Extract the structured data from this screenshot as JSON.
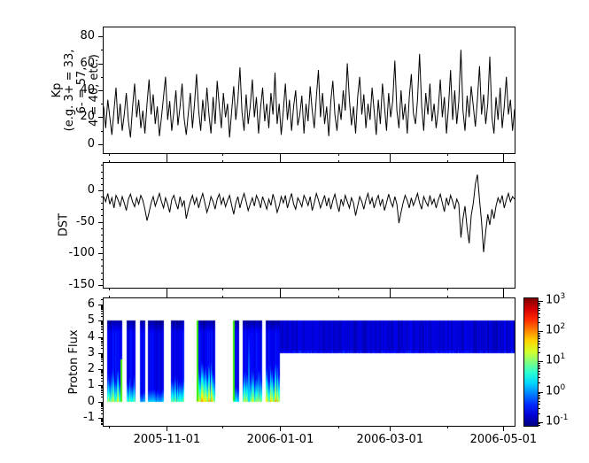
{
  "figure": {
    "background": "#ffffff",
    "line_color": "#000000"
  },
  "labels": {
    "kp_lines": [
      "Kp",
      "(e.g. 3+ = 33,",
      "6- = 57,",
      "4 = 40, etc.)"
    ],
    "dst": "DST",
    "proton": "Proton Flux"
  },
  "xaxis": {
    "domain_days": 221,
    "ticks": [
      {
        "day": 34,
        "label": "2005-11-01"
      },
      {
        "day": 95,
        "label": "2006-01-01"
      },
      {
        "day": 154,
        "label": "2006-03-01"
      },
      {
        "day": 215,
        "label": "2006-05-01"
      }
    ],
    "minor_days": [
      3,
      64,
      126,
      185
    ]
  },
  "colorbar": {
    "base": "10",
    "tick_exponents": [
      3,
      2,
      1,
      0,
      -1
    ],
    "range_exponents": [
      -1.12,
      3.09
    ],
    "scale": "log",
    "colormap": "jet"
  },
  "chart_data": [
    {
      "type": "line",
      "name": "kp",
      "ylabel": "Kp (e.g. 3+ = 33, 6- = 57, 4 = 40, etc.)",
      "ylim": [
        -6.6,
        86.6
      ],
      "yticks": [
        0,
        20,
        40,
        60,
        80
      ],
      "yticks_minor": [
        10,
        30,
        50,
        70
      ],
      "x_domain_days": [
        0,
        221
      ],
      "values": [
        28,
        12,
        33,
        20,
        7,
        25,
        42,
        15,
        30,
        10,
        22,
        38,
        17,
        5,
        27,
        45,
        20,
        33,
        12,
        25,
        8,
        30,
        48,
        22,
        37,
        15,
        28,
        6,
        20,
        35,
        50,
        18,
        32,
        10,
        24,
        40,
        14,
        28,
        45,
        19,
        7,
        23,
        38,
        12,
        30,
        52,
        25,
        10,
        33,
        17,
        42,
        22,
        8,
        35,
        15,
        47,
        28,
        12,
        38,
        20,
        30,
        5,
        25,
        43,
        18,
        33,
        57,
        24,
        10,
        37,
        15,
        28,
        48,
        20,
        35,
        8,
        27,
        42,
        17,
        30,
        12,
        38,
        22,
        53,
        15,
        30,
        7,
        25,
        45,
        18,
        33,
        10,
        28,
        40,
        14,
        22,
        36,
        8,
        30,
        17,
        43,
        25,
        12,
        35,
        55,
        20,
        38,
        15,
        28,
        6,
        32,
        47,
        22,
        10,
        30,
        18,
        40,
        25,
        60,
        33,
        14,
        28,
        8,
        35,
        50,
        22,
        37,
        12,
        30,
        18,
        42,
        25,
        7,
        33,
        15,
        45,
        28,
        10,
        38,
        20,
        32,
        62,
        25,
        12,
        40,
        18,
        30,
        8,
        35,
        52,
        23,
        15,
        33,
        67,
        28,
        10,
        38,
        22,
        45,
        17,
        30,
        12,
        25,
        48,
        20,
        35,
        8,
        28,
        55,
        18,
        40,
        15,
        32,
        70,
        25,
        10,
        36,
        20,
        43,
        28,
        13,
        33,
        58,
        22,
        37,
        15,
        30,
        65,
        20,
        8,
        35,
        18,
        42,
        12,
        28,
        50,
        22,
        33,
        10,
        26
      ]
    },
    {
      "type": "line",
      "name": "dst",
      "ylabel": "DST",
      "ylim": [
        -154.5,
        43.5
      ],
      "yticks": [
        0,
        -50,
        -100,
        -150
      ],
      "yticks_minor_step": 10,
      "x_domain_days": [
        0,
        221
      ],
      "values": [
        -10,
        -18,
        -5,
        -22,
        -12,
        -28,
        -8,
        -15,
        -25,
        -10,
        -20,
        -32,
        -14,
        -6,
        -18,
        -26,
        -12,
        -22,
        -8,
        -16,
        -30,
        -48,
        -35,
        -20,
        -10,
        -25,
        -15,
        -5,
        -18,
        -28,
        -12,
        -22,
        -35,
        -15,
        -8,
        -20,
        -30,
        -10,
        -25,
        -16,
        -45,
        -30,
        -18,
        -8,
        -22,
        -12,
        -28,
        -15,
        -5,
        -20,
        -35,
        -25,
        -10,
        -18,
        -30,
        -14,
        -6,
        -22,
        -12,
        -26,
        -16,
        -8,
        -24,
        -38,
        -20,
        -10,
        -28,
        -15,
        -5,
        -18,
        -32,
        -22,
        -12,
        -25,
        -8,
        -16,
        -28,
        -10,
        -20,
        -30,
        -14,
        -24,
        -6,
        -18,
        -35,
        -25,
        -10,
        -20,
        -8,
        -28,
        -16,
        -5,
        -22,
        -30,
        -12,
        -18,
        -26,
        -8,
        -15,
        -24,
        -10,
        -32,
        -20,
        -5,
        -15,
        -28,
        -18,
        -8,
        -25,
        -12,
        -30,
        -16,
        -6,
        -22,
        -34,
        -14,
        -24,
        -8,
        -18,
        -28,
        -12,
        -20,
        -40,
        -25,
        -10,
        -18,
        -30,
        -15,
        -5,
        -22,
        -12,
        -28,
        -16,
        -8,
        -24,
        -14,
        -32,
        -20,
        -6,
        -18,
        -26,
        -10,
        -22,
        -52,
        -35,
        -20,
        -8,
        -16,
        -28,
        -12,
        -24,
        -15,
        -5,
        -20,
        -30,
        -10,
        -18,
        -25,
        -8,
        -22,
        -14,
        -28,
        -16,
        -6,
        -20,
        -34,
        -12,
        -24,
        -8,
        -18,
        -30,
        -14,
        -22,
        -75,
        -45,
        -25,
        -60,
        -84,
        -40,
        -20,
        10,
        25,
        -15,
        -50,
        -98,
        -65,
        -38,
        -55,
        -30,
        -45,
        -25,
        -12,
        -20,
        -8,
        -28,
        -15,
        -5,
        -18,
        -10,
        -14
      ]
    },
    {
      "type": "heatmap",
      "name": "proton_flux",
      "ylabel": "Proton Flux",
      "ylim": [
        -1.49,
        6.38
      ],
      "yticks": [
        -1,
        0,
        1,
        2,
        3,
        4,
        5,
        6
      ],
      "colormap": "jet",
      "value_scale_exponents": [
        -1.12,
        3.09
      ],
      "bands_y": [
        0,
        5
      ],
      "bands": [
        {
          "t0": 1.8,
          "t1": 10.2,
          "hot": 0.7,
          "green_right": true
        },
        {
          "t0": 12.5,
          "t1": 17.0,
          "hot": 0.55
        },
        {
          "t0": 19.7,
          "t1": 22.5,
          "hot": 0.15
        },
        {
          "t0": 24.0,
          "t1": 32.4,
          "hot": 0.2
        },
        {
          "t0": 36.3,
          "t1": 43.5,
          "hot": 0.5
        },
        {
          "t0": 49.9,
          "t1": 59.9,
          "hot": 0.85,
          "green_left": true
        },
        {
          "t0": 69.7,
          "t1": 72.9,
          "hot": 0.3,
          "green_left": true
        },
        {
          "t0": 74.8,
          "t1": 85.4,
          "hot": 0.65,
          "streak_day": 77.5
        },
        {
          "t0": 87.1,
          "t1": 94.8,
          "hot": 0.8
        }
      ],
      "block": {
        "t0": 95,
        "t1": 221,
        "y0": 3,
        "y1": 5
      }
    }
  ]
}
